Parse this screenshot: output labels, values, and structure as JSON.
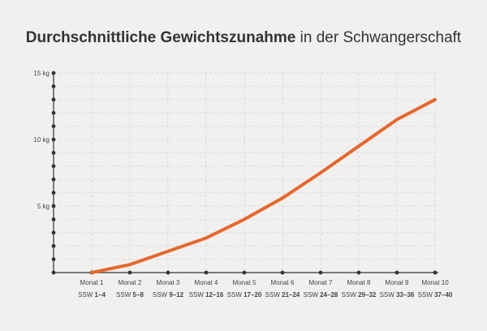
{
  "title": {
    "bold": "Durchschnittliche Gewichtszunahme",
    "rest": " in der Schwangerschaft"
  },
  "colors": {
    "background": "#f1f0ef",
    "line": "#e5682e",
    "axis": "#333333",
    "grid": "#d9d9d9"
  },
  "chart_data": {
    "type": "line",
    "title": "Durchschnittliche Gewichtszunahme in der Schwangerschaft",
    "categories": [
      {
        "month": "Monat 1",
        "ssw_prefix": "SSW ",
        "ssw_range": "1–4"
      },
      {
        "month": "Monat 2",
        "ssw_prefix": "SSW ",
        "ssw_range": "5–8"
      },
      {
        "month": "Monat 3",
        "ssw_prefix": "SSW ",
        "ssw_range": "9–12"
      },
      {
        "month": "Monat 4",
        "ssw_prefix": "SSW ",
        "ssw_range": "12–16"
      },
      {
        "month": "Monat 5",
        "ssw_prefix": "SSW ",
        "ssw_range": "17–20"
      },
      {
        "month": "Monat 6",
        "ssw_prefix": "SSW ",
        "ssw_range": "21–24"
      },
      {
        "month": "Monat 7",
        "ssw_prefix": "SSW ",
        "ssw_range": "24–28"
      },
      {
        "month": "Monat 8",
        "ssw_prefix": "SSW ",
        "ssw_range": "29–32"
      },
      {
        "month": "Monat 9",
        "ssw_prefix": "SSW ",
        "ssw_range": "33–36"
      },
      {
        "month": "Monat 10",
        "ssw_prefix": "SSW ",
        "ssw_range": "37–40"
      }
    ],
    "values": [
      0,
      0.6,
      1.6,
      2.6,
      4.0,
      5.6,
      7.5,
      9.5,
      11.5,
      13.0
    ],
    "ylim": [
      0,
      15
    ],
    "yticks": [
      {
        "value": 5,
        "label": "5 kg"
      },
      {
        "value": 10,
        "label": "10 kg"
      },
      {
        "value": 15,
        "label": "15 kg"
      }
    ],
    "y_minor_step": 1,
    "grid": true,
    "grid_style": "dashed"
  }
}
